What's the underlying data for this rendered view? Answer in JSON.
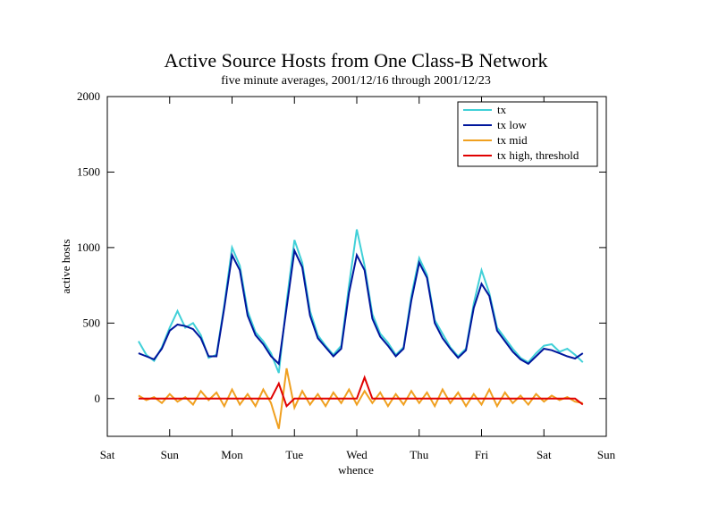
{
  "chart_data": {
    "type": "line",
    "title": "Active Source Hosts from One Class-B Network",
    "subtitle": "five minute averages, 2001/12/16 through 2001/12/23",
    "xlabel": "whence",
    "ylabel": "active hosts",
    "xlim": [
      0,
      8
    ],
    "xticks": [
      {
        "value": 0,
        "label": "Sat"
      },
      {
        "value": 1,
        "label": "Sun"
      },
      {
        "value": 2,
        "label": "Mon"
      },
      {
        "value": 3,
        "label": "Tue"
      },
      {
        "value": 4,
        "label": "Wed"
      },
      {
        "value": 5,
        "label": "Thu"
      },
      {
        "value": 6,
        "label": "Fri"
      },
      {
        "value": 7,
        "label": "Sat"
      },
      {
        "value": 8,
        "label": "Sun"
      }
    ],
    "ylim": [
      -250,
      2000
    ],
    "yticks": [
      0,
      500,
      1000,
      1500,
      2000
    ],
    "legend": "upper right",
    "x": [
      0.5,
      0.625,
      0.75,
      0.875,
      1.0,
      1.125,
      1.25,
      1.375,
      1.5,
      1.625,
      1.75,
      1.875,
      2.0,
      2.125,
      2.25,
      2.375,
      2.5,
      2.625,
      2.75,
      2.875,
      3.0,
      3.125,
      3.25,
      3.375,
      3.5,
      3.625,
      3.75,
      3.875,
      4.0,
      4.125,
      4.25,
      4.375,
      4.5,
      4.625,
      4.75,
      4.875,
      5.0,
      5.125,
      5.25,
      5.375,
      5.5,
      5.625,
      5.75,
      5.875,
      6.0,
      6.125,
      6.25,
      6.375,
      6.5,
      6.625,
      6.75,
      6.875,
      7.0,
      7.125,
      7.25,
      7.375,
      7.5,
      7.625
    ],
    "series": [
      {
        "name": "tx",
        "color": "#40d0d8",
        "values": [
          380,
          290,
          250,
          340,
          470,
          580,
          470,
          500,
          420,
          270,
          290,
          620,
          1000,
          880,
          580,
          440,
          380,
          300,
          170,
          640,
          1050,
          900,
          580,
          420,
          350,
          290,
          350,
          750,
          1120,
          880,
          560,
          430,
          370,
          290,
          340,
          680,
          930,
          820,
          520,
          430,
          340,
          280,
          330,
          630,
          850,
          700,
          470,
          400,
          330,
          270,
          240,
          300,
          350,
          360,
          310,
          330,
          290,
          240
        ]
      },
      {
        "name": "tx low",
        "color": "#00169c",
        "values": [
          300,
          280,
          260,
          330,
          450,
          490,
          480,
          460,
          400,
          280,
          280,
          600,
          950,
          850,
          550,
          420,
          360,
          280,
          230,
          600,
          980,
          870,
          550,
          400,
          340,
          280,
          330,
          700,
          950,
          850,
          530,
          410,
          350,
          280,
          330,
          650,
          900,
          800,
          500,
          400,
          330,
          270,
          320,
          600,
          760,
          680,
          450,
          380,
          310,
          260,
          230,
          280,
          330,
          320,
          300,
          280,
          265,
          300
        ]
      },
      {
        "name": "tx mid",
        "color": "#f0a020",
        "values": [
          20,
          -10,
          10,
          -30,
          30,
          -20,
          10,
          -40,
          50,
          -10,
          40,
          -50,
          60,
          -40,
          30,
          -50,
          60,
          -30,
          -200,
          200,
          -60,
          50,
          -40,
          30,
          -50,
          40,
          -30,
          60,
          -40,
          50,
          -30,
          40,
          -50,
          30,
          -40,
          50,
          -30,
          40,
          -50,
          60,
          -30,
          40,
          -50,
          30,
          -40,
          60,
          -50,
          40,
          -30,
          20,
          -40,
          30,
          -20,
          20,
          -10,
          10,
          -20,
          -30
        ]
      },
      {
        "name": "tx high, threshold",
        "color": "#e00000",
        "values": [
          0,
          0,
          0,
          0,
          0,
          0,
          0,
          0,
          0,
          0,
          0,
          0,
          0,
          0,
          0,
          0,
          0,
          0,
          100,
          -50,
          0,
          0,
          0,
          0,
          0,
          0,
          0,
          0,
          0,
          140,
          0,
          0,
          0,
          0,
          0,
          0,
          0,
          0,
          0,
          0,
          0,
          0,
          0,
          0,
          0,
          0,
          0,
          0,
          0,
          0,
          0,
          0,
          0,
          0,
          0,
          0,
          0,
          -40
        ]
      }
    ]
  }
}
